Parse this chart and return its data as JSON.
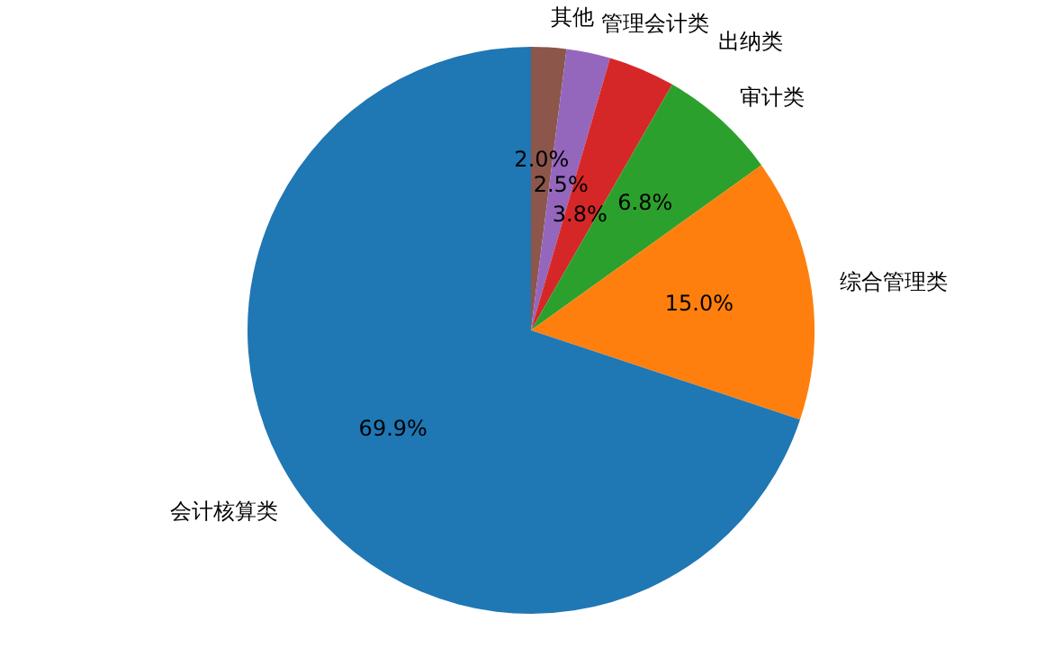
{
  "chart_data": {
    "type": "pie",
    "categories": [
      "会计核算类",
      "综合管理类",
      "审计类",
      "出纳类",
      "管理会计类",
      "其他"
    ],
    "values": [
      69.9,
      15.0,
      6.8,
      3.8,
      2.5,
      2.0
    ],
    "colors": [
      "#1f77b4",
      "#ff7f0e",
      "#2ca02c",
      "#d62728",
      "#9467bd",
      "#8c564b"
    ],
    "value_labels": [
      "69.9%",
      "15.0%",
      "6.8%",
      "3.8%",
      "2.5%",
      "2.0%"
    ]
  }
}
